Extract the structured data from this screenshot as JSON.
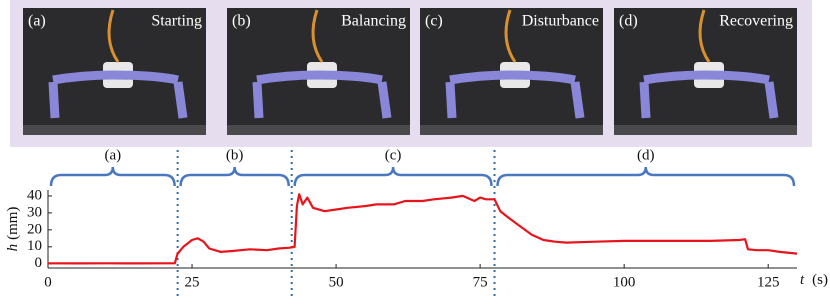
{
  "panels": [
    {
      "label": "(a)",
      "caption": "Starting"
    },
    {
      "label": "(b)",
      "caption": "Balancing"
    },
    {
      "label": "(c)",
      "caption": "Disturbance"
    },
    {
      "label": "(d)",
      "caption": "Recovering"
    }
  ],
  "chart_data": {
    "type": "line",
    "x_label_symbol": "t",
    "x_label_unit": "(s)",
    "y_label_symbol": "h",
    "y_label_unit": "(mm)",
    "x": [
      0,
      5,
      10,
      15,
      20,
      22,
      22.5,
      23.5,
      25,
      26,
      27,
      28,
      30,
      32,
      35,
      38,
      40,
      42,
      42.8,
      43.2,
      43.6,
      44.2,
      45,
      46,
      48,
      50,
      52,
      55,
      57,
      60,
      62,
      65,
      67,
      70,
      72,
      74,
      75,
      76,
      77.5,
      78.5,
      80,
      82,
      84,
      86,
      88,
      90,
      95,
      100,
      105,
      110,
      115,
      120,
      121,
      121.5,
      123,
      125,
      127,
      130
    ],
    "values": [
      0.3,
      0.2,
      0.3,
      0.2,
      0.3,
      0.3,
      6,
      10,
      14,
      15,
      13,
      9,
      7,
      7.5,
      8.5,
      8,
      9,
      9.5,
      10,
      34,
      41,
      35,
      39,
      33,
      31,
      32,
      33,
      34,
      35,
      35,
      37,
      37,
      38,
      39,
      40,
      37,
      39,
      38,
      38,
      31,
      27,
      22,
      17,
      14,
      13,
      12.5,
      13,
      13.5,
      13.5,
      13.5,
      13.5,
      14,
      14.5,
      8.5,
      8,
      8,
      7,
      6
    ],
    "color": "#e8141c",
    "xlim": [
      0,
      130
    ],
    "ylim": [
      -2.5,
      43.5
    ],
    "xticks": [
      0,
      25,
      50,
      75,
      100,
      125
    ],
    "yticks": [
      0,
      10,
      20,
      30,
      40
    ],
    "dividers": [
      22.5,
      42.3,
      77.5
    ],
    "phase_labels": [
      "(a)",
      "(b)",
      "(c)",
      "(d)"
    ],
    "divider_color": "#2e6fa8",
    "brace_color": "#4a78c0"
  }
}
